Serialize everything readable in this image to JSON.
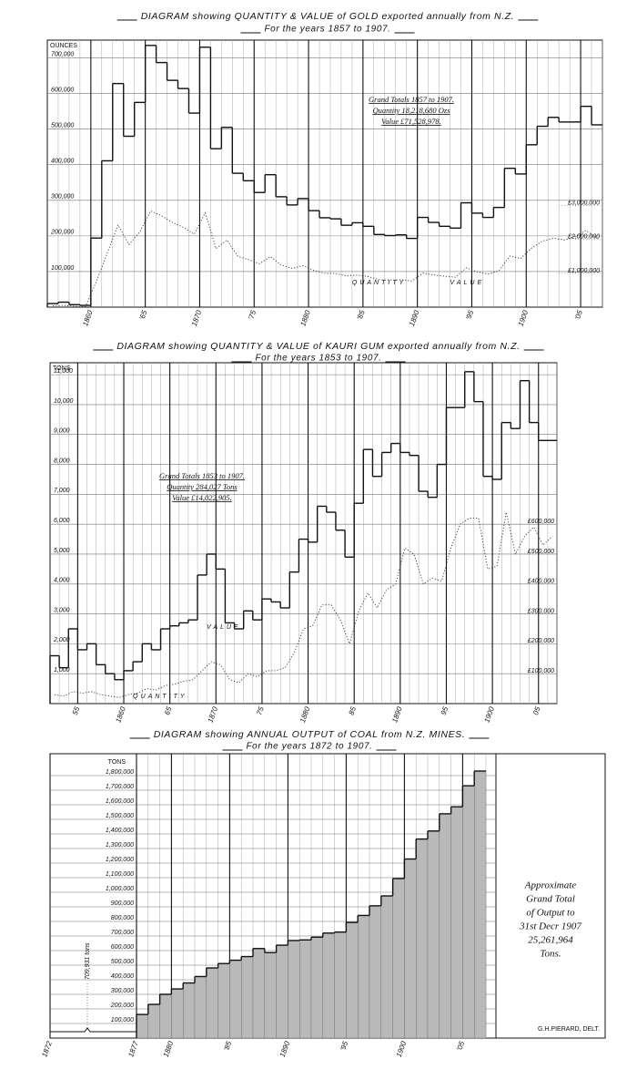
{
  "chart_data": [
    {
      "type": "step",
      "title": "DIAGRAM showing QUANTITY & VALUE of GOLD exported annually from N.Z.",
      "subtitle": "For the years 1857 to 1907.",
      "y_label": "OUNCES",
      "annotations": [
        "Grand Totals 1857 to 1907.",
        "Quantity 18,218,680 Ozs",
        "Value £71,528,978."
      ],
      "x": [
        1857,
        1858,
        1859,
        1860,
        1861,
        1862,
        1863,
        1864,
        1865,
        1866,
        1867,
        1868,
        1869,
        1870,
        1871,
        1872,
        1873,
        1874,
        1875,
        1876,
        1877,
        1878,
        1879,
        1880,
        1881,
        1882,
        1883,
        1884,
        1885,
        1886,
        1887,
        1888,
        1889,
        1890,
        1891,
        1892,
        1893,
        1894,
        1895,
        1896,
        1897,
        1898,
        1899,
        1900,
        1901,
        1902,
        1903,
        1904,
        1905,
        1906,
        1907
      ],
      "series": [
        {
          "name": "QUANTITY",
          "color": "#111",
          "values": [
            10000,
            14000,
            7000,
            5000,
            194000,
            411000,
            628000,
            480000,
            575000,
            735000,
            687000,
            637000,
            614000,
            545000,
            730000,
            445000,
            505000,
            376000,
            355000,
            322000,
            372000,
            310000,
            287000,
            305000,
            271000,
            251000,
            248000,
            230000,
            237000,
            227000,
            204000,
            201000,
            203000,
            193000,
            252000,
            238000,
            227000,
            222000,
            293000,
            264000,
            252000,
            280000,
            390000,
            374000,
            456000,
            508000,
            533000,
            520000,
            520000,
            564000,
            512000
          ]
        },
        {
          "name": "VALUE",
          "color": "#333",
          "axis": "y2",
          "values": [
            40000,
            52000,
            28000,
            17000,
            752000,
            1591000,
            2431000,
            1856000,
            2226000,
            2844000,
            2698000,
            2504000,
            2363000,
            2157000,
            2787000,
            1731000,
            1987000,
            1505000,
            1408000,
            1284000,
            1496000,
            1240000,
            1148000,
            1227000,
            1080000,
            1002000,
            994000,
            921000,
            948000,
            903000,
            811000,
            801000,
            809000,
            773000,
            1007000,
            954000,
            914000,
            887000,
            1162000,
            1041000,
            980000,
            1081000,
            1513000,
            1439000,
            1754000,
            1951000,
            2038000,
            1987000,
            2093000,
            2270000,
            2028000
          ]
        }
      ],
      "xlim": [
        1856,
        1907
      ],
      "xticks": [
        1860,
        {
          "value": 1865,
          "label": "'65"
        },
        1870,
        {
          "value": 1875,
          "label": "'75"
        },
        1880,
        {
          "value": 1885,
          "label": "'85"
        },
        1890,
        {
          "value": 1895,
          "label": "'95"
        },
        1900,
        {
          "value": 1905,
          "label": "'05"
        }
      ],
      "ylim": [
        0,
        750000
      ],
      "yticks": [
        {
          "value": 100000,
          "label": "100,000"
        },
        {
          "value": 200000,
          "label": "200,000"
        },
        {
          "value": 300000,
          "label": "300,000"
        },
        {
          "value": 400000,
          "label": "400,000"
        },
        {
          "value": 500000,
          "label": "500,000"
        },
        {
          "value": 600000,
          "label": "600,000"
        },
        {
          "value": 700000,
          "label": "700,000"
        }
      ],
      "y2lim": [
        0,
        7900000
      ],
      "y2ticks": [
        {
          "value": 1000000,
          "label": "£1,000,000"
        },
        {
          "value": 2000000,
          "label": "£2,000,000"
        },
        {
          "value": 3000000,
          "label": "£3,000,000"
        }
      ],
      "grid": true
    },
    {
      "type": "step",
      "title": "DIAGRAM showing QUANTITY & VALUE of KAURI GUM exported annually from N.Z.",
      "subtitle": "For the years 1853 to 1907.",
      "y_label": "TONS",
      "annotations": [
        "Grand Totals 1853 to 1907.",
        "Quantity 284,027 Tons",
        "Value £14,022,905."
      ],
      "x": [
        1853,
        1854,
        1855,
        1856,
        1857,
        1858,
        1859,
        1860,
        1861,
        1862,
        1863,
        1864,
        1865,
        1866,
        1867,
        1868,
        1869,
        1870,
        1871,
        1872,
        1873,
        1874,
        1875,
        1876,
        1877,
        1878,
        1879,
        1880,
        1881,
        1882,
        1883,
        1884,
        1885,
        1886,
        1887,
        1888,
        1889,
        1890,
        1891,
        1892,
        1893,
        1894,
        1895,
        1896,
        1897,
        1898,
        1899,
        1900,
        1901,
        1902,
        1903,
        1904,
        1905,
        1906,
        1907
      ],
      "series": [
        {
          "name": "QUANTITY",
          "color": "#111",
          "values": [
            1600,
            1200,
            2500,
            1800,
            2000,
            1300,
            1000,
            800,
            1100,
            1400,
            2000,
            1800,
            2500,
            2600,
            2700,
            2800,
            4300,
            5000,
            4500,
            2700,
            2500,
            3100,
            2800,
            3500,
            3400,
            3200,
            4400,
            5500,
            5400,
            6600,
            6400,
            5800,
            4900,
            6700,
            8500,
            7600,
            8400,
            8700,
            8400,
            8300,
            7100,
            6900,
            8000,
            9900,
            9900,
            11100,
            10100,
            7600,
            7500,
            9400,
            9200,
            10800,
            9400,
            8800,
            8800
          ]
        },
        {
          "name": "VALUE",
          "color": "#333",
          "axis": "y2",
          "values": [
            30000,
            25000,
            40000,
            35000,
            40000,
            30000,
            25000,
            20000,
            30000,
            35000,
            50000,
            45000,
            60000,
            65000,
            75000,
            80000,
            110000,
            140000,
            130000,
            80000,
            70000,
            100000,
            90000,
            110000,
            110000,
            120000,
            170000,
            250000,
            260000,
            330000,
            330000,
            280000,
            200000,
            310000,
            370000,
            320000,
            380000,
            400000,
            520000,
            500000,
            400000,
            420000,
            410000,
            520000,
            600000,
            620000,
            620000,
            450000,
            460000,
            640000,
            500000,
            560000,
            590000,
            530000,
            560000
          ]
        }
      ],
      "xlim": [
        1852,
        1907
      ],
      "xticks": [
        {
          "value": 1855,
          "label": "55"
        },
        1860,
        {
          "value": 1865,
          "label": "65"
        },
        1870,
        {
          "value": 1875,
          "label": "75"
        },
        1880,
        {
          "value": 1885,
          "label": "85"
        },
        1890,
        {
          "value": 1895,
          "label": "95"
        },
        1900,
        {
          "value": 1905,
          "label": "05"
        }
      ],
      "ylim": [
        0,
        11400
      ],
      "yticks": [
        {
          "value": 1000,
          "label": "1,000"
        },
        {
          "value": 2000,
          "label": "2,000"
        },
        {
          "value": 3000,
          "label": "3,000"
        },
        {
          "value": 4000,
          "label": "4,000"
        },
        {
          "value": 5000,
          "label": "5,000"
        },
        {
          "value": 6000,
          "label": "6,000"
        },
        {
          "value": 7000,
          "label": "7,000"
        },
        {
          "value": 8000,
          "label": "8,000"
        },
        {
          "value": 9000,
          "label": "9,000"
        },
        {
          "value": 10000,
          "label": "10,000"
        },
        {
          "value": 11000,
          "label": "11,000"
        }
      ],
      "y2lim": [
        0,
        1140000
      ],
      "y2ticks": [
        {
          "value": 100000,
          "label": "£100,000"
        },
        {
          "value": 200000,
          "label": "£200,000"
        },
        {
          "value": 300000,
          "label": "£300,000"
        },
        {
          "value": 400000,
          "label": "£400,000"
        },
        {
          "value": 500000,
          "label": "£500,000"
        },
        {
          "value": 600000,
          "label": "£600,000"
        }
      ],
      "grid": true
    },
    {
      "type": "step",
      "title": "DIAGRAM showing ANNUAL OUTPUT of COAL from N.Z. MINES.",
      "subtitle": "For the years 1872 to 1907.",
      "y_label": "TONS",
      "annotations": [
        "Approximate",
        "Grand Total",
        "of Output to",
        "31st Decr 1907",
        "25,261,964",
        "Tons."
      ],
      "early_label": "709,931 tons",
      "credit": "G.H.PIERARD, DELT.",
      "x": [
        1878,
        1879,
        1880,
        1881,
        1882,
        1883,
        1884,
        1885,
        1886,
        1887,
        1888,
        1889,
        1890,
        1891,
        1892,
        1893,
        1894,
        1895,
        1896,
        1897,
        1898,
        1899,
        1900,
        1901,
        1902,
        1903,
        1904,
        1905,
        1906,
        1907
      ],
      "series": [
        {
          "color": "#111",
          "fill_color": "#b9b9b9",
          "values": [
            162000,
            231000,
            300000,
            337000,
            378000,
            422000,
            481000,
            511000,
            534000,
            559000,
            614000,
            586000,
            637000,
            669000,
            673000,
            692000,
            720000,
            727000,
            793000,
            841000,
            907000,
            975000,
            1094000,
            1228000,
            1365000,
            1420000,
            1538000,
            1586000,
            1730000,
            1831000
          ]
        }
      ],
      "xlim": [
        1872,
        1907
      ],
      "xticks": [
        1872,
        1877,
        1880,
        {
          "value": 1885,
          "label": "'85"
        },
        1890,
        {
          "value": 1895,
          "label": "'95"
        },
        1900,
        {
          "value": 1905,
          "label": "'05"
        }
      ],
      "ylim": [
        0,
        1950000
      ],
      "yticks": [
        {
          "value": 100000,
          "label": "100,000"
        },
        {
          "value": 200000,
          "label": "200,000"
        },
        {
          "value": 300000,
          "label": "300,000"
        },
        {
          "value": 400000,
          "label": "400,000"
        },
        {
          "value": 500000,
          "label": "500,000"
        },
        {
          "value": 600000,
          "label": "600,000"
        },
        {
          "value": 700000,
          "label": "700,000"
        },
        {
          "value": 800000,
          "label": "800,000"
        },
        {
          "value": 900000,
          "label": "900,000"
        },
        {
          "value": 1000000,
          "label": "1,000,000"
        },
        {
          "value": 1100000,
          "label": "1,100,000"
        },
        {
          "value": 1200000,
          "label": "1,200,000"
        },
        {
          "value": 1300000,
          "label": "1,300,000"
        },
        {
          "value": 1400000,
          "label": "1,400,000"
        },
        {
          "value": 1500000,
          "label": "1,500,000"
        },
        {
          "value": 1600000,
          "label": "1,600,000"
        },
        {
          "value": 1700000,
          "label": "1,700,000"
        },
        {
          "value": 1800000,
          "label": "1,800,000"
        }
      ],
      "grid": true
    }
  ]
}
